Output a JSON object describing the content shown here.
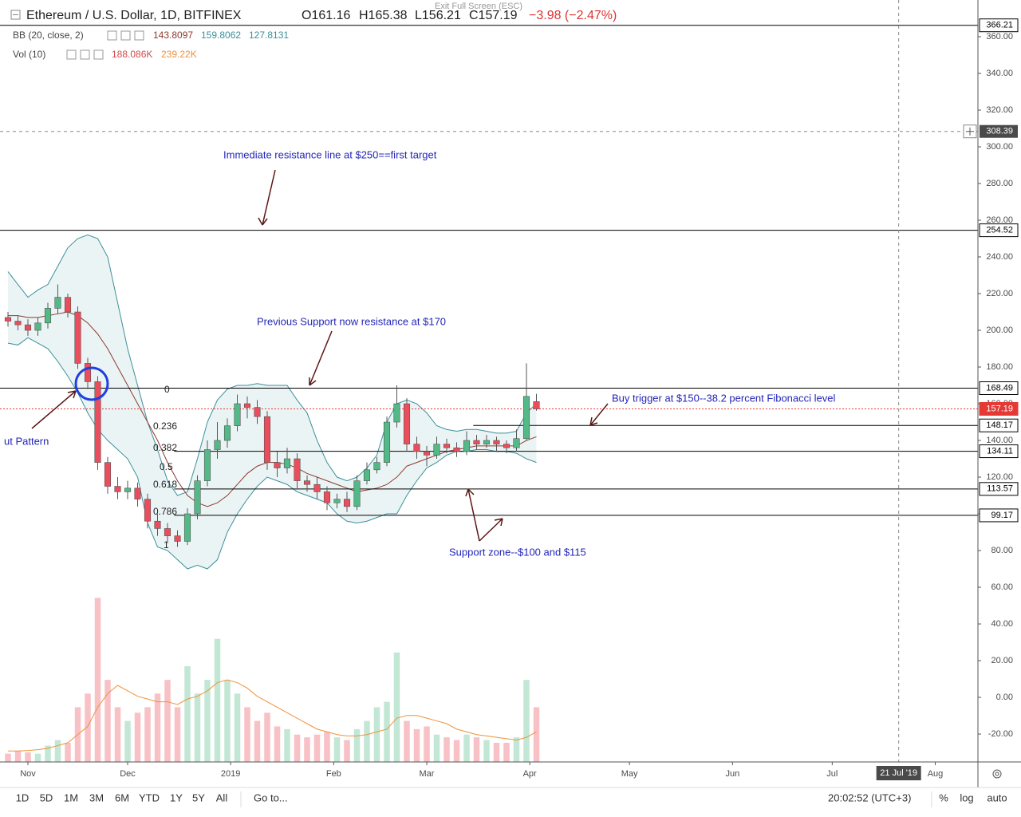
{
  "chart_data": {
    "type": "candlestick",
    "exit_fullscreen": "Exit Full Screen (ESC)",
    "title": "Ethereum / U.S. Dollar, 1D, BITFINEX",
    "ohlc_legend": [
      "O161.16",
      "H165.38",
      "L156.21",
      "C157.19",
      "−3.98 (−2.47%)"
    ],
    "indicators": [
      {
        "name": "BB (20, close, 2)",
        "values": [
          "143.8097",
          "159.8062",
          "127.8131"
        ]
      },
      {
        "name": "Vol (10)",
        "values": [
          "188.086K",
          "239.22K"
        ]
      }
    ],
    "x": [
      -6,
      -3,
      0,
      3,
      6,
      9,
      12,
      15,
      18,
      21,
      24,
      27,
      30,
      33,
      36,
      39,
      42,
      45,
      48,
      51,
      54,
      57,
      60,
      63,
      66,
      69,
      72,
      75,
      78,
      81,
      84,
      87,
      90,
      93,
      96,
      99,
      102,
      105,
      108,
      111,
      114,
      117,
      120,
      123,
      126,
      129,
      132,
      135,
      138,
      141,
      144,
      147,
      150,
      153
    ],
    "open": [
      207,
      205,
      203,
      200,
      204,
      212,
      218,
      210,
      182,
      172,
      128,
      115,
      112,
      114,
      108,
      96,
      92,
      88,
      85,
      100,
      118,
      135,
      140,
      148,
      160,
      158,
      153,
      128,
      125,
      130,
      118,
      116,
      112,
      106,
      108,
      104,
      118,
      124,
      128,
      150,
      160,
      138,
      134,
      132,
      138,
      136,
      134,
      140,
      138,
      140,
      138,
      136,
      141,
      161.16
    ],
    "high": [
      210,
      208,
      206,
      207,
      215,
      225,
      220,
      213,
      185,
      175,
      131,
      120,
      118,
      117,
      111,
      100,
      95,
      91,
      103,
      121,
      140,
      150,
      152,
      165,
      164,
      162,
      156,
      134,
      136,
      133,
      121,
      120,
      115,
      111,
      112,
      121,
      128,
      131,
      153,
      170,
      163,
      142,
      137,
      142,
      141,
      139,
      145,
      143,
      143,
      142,
      140,
      146,
      182,
      165.38
    ],
    "low": [
      202,
      200,
      197,
      197,
      201,
      209,
      207,
      179,
      168,
      124,
      111,
      108,
      108,
      104,
      92,
      88,
      84,
      82,
      83,
      97,
      115,
      130,
      136,
      145,
      152,
      149,
      124,
      120,
      122,
      114,
      112,
      108,
      102,
      103,
      101,
      102,
      116,
      122,
      126,
      147,
      134,
      130,
      126,
      130,
      133,
      131,
      132,
      135,
      136,
      134,
      133,
      134,
      140,
      156.21
    ],
    "close": [
      205,
      203,
      200,
      204,
      212,
      218,
      210,
      182,
      172,
      128,
      115,
      112,
      114,
      108,
      96,
      92,
      88,
      85,
      100,
      118,
      135,
      140,
      148,
      160,
      158,
      153,
      128,
      125,
      130,
      118,
      116,
      112,
      106,
      108,
      104,
      118,
      124,
      128,
      150,
      160,
      138,
      134,
      132,
      138,
      136,
      134,
      140,
      138,
      140,
      138,
      136,
      141,
      164,
      157.19
    ],
    "up_color": "#53b987",
    "down_color": "#eb4d5c",
    "bb": {
      "color": "#3c8f9a",
      "mid_color": "#8d3a2e",
      "upper": [
        232,
        225,
        218,
        222,
        225,
        235,
        245,
        250,
        252,
        250,
        240,
        215,
        190,
        170,
        150,
        135,
        118,
        110,
        112,
        130,
        150,
        162,
        168,
        170,
        170,
        171,
        170,
        170,
        170,
        162,
        155,
        140,
        128,
        120,
        118,
        120,
        125,
        132,
        150,
        160,
        162,
        160,
        155,
        148,
        146,
        145,
        146,
        146,
        145,
        144,
        144,
        145,
        155,
        160
      ],
      "middle": [
        208,
        208,
        207,
        207,
        208,
        209,
        210,
        208,
        204,
        198,
        190,
        180,
        170,
        160,
        150,
        140,
        128,
        118,
        110,
        106,
        104,
        106,
        110,
        116,
        122,
        126,
        128,
        128,
        127,
        125,
        122,
        120,
        118,
        116,
        114,
        112,
        113,
        114,
        116,
        120,
        126,
        128,
        130,
        132,
        134,
        135,
        136,
        137,
        137,
        137,
        137,
        137,
        140,
        142
      ],
      "lower": [
        193,
        192,
        196,
        193,
        190,
        183,
        175,
        166,
        155,
        146,
        140,
        135,
        130,
        120,
        95,
        82,
        80,
        75,
        70,
        72,
        70,
        75,
        90,
        100,
        108,
        115,
        120,
        118,
        116,
        112,
        110,
        108,
        106,
        100,
        96,
        95,
        96,
        98,
        100,
        100,
        110,
        118,
        125,
        128,
        132,
        134,
        134,
        135,
        135,
        134,
        134,
        133,
        130,
        128
      ]
    },
    "volume": {
      "ylim": [
        0,
        700
      ],
      "ma_color": "#f0913a",
      "values": [
        30,
        40,
        35,
        30,
        60,
        80,
        70,
        200,
        250,
        600,
        300,
        200,
        150,
        180,
        200,
        250,
        300,
        200,
        350,
        250,
        300,
        450,
        300,
        250,
        200,
        150,
        180,
        130,
        120,
        100,
        90,
        100,
        110,
        90,
        80,
        120,
        150,
        200,
        220,
        400,
        150,
        120,
        130,
        100,
        90,
        80,
        100,
        90,
        80,
        70,
        70,
        90,
        300,
        200
      ],
      "ma": [
        40,
        40,
        42,
        45,
        50,
        60,
        70,
        100,
        130,
        200,
        250,
        280,
        260,
        240,
        230,
        220,
        220,
        210,
        230,
        240,
        260,
        290,
        300,
        290,
        270,
        240,
        220,
        200,
        180,
        160,
        140,
        120,
        110,
        100,
        95,
        95,
        100,
        110,
        120,
        160,
        170,
        170,
        160,
        150,
        140,
        120,
        110,
        100,
        95,
        90,
        85,
        80,
        90,
        110
      ]
    },
    "xlim": [
      -7.2,
      285.6
    ],
    "xticks": [
      {
        "value": 0,
        "label": "Nov"
      },
      {
        "value": 30,
        "label": "Dec"
      },
      {
        "value": 61,
        "label": "2019"
      },
      {
        "value": 92,
        "label": "Feb"
      },
      {
        "value": 120,
        "label": "Mar"
      },
      {
        "value": 151,
        "label": "Apr"
      },
      {
        "value": 181,
        "label": "May"
      },
      {
        "value": 212,
        "label": "Jun"
      },
      {
        "value": 242,
        "label": "Jul"
      },
      {
        "value": 273,
        "label": "Aug"
      }
    ],
    "ylim": [
      -35.2,
      380
    ],
    "yticks": [
      {
        "value": -20,
        "label": "-20.00"
      },
      {
        "value": 0,
        "label": "0.00"
      },
      {
        "value": 20,
        "label": "20.00"
      },
      {
        "value": 40,
        "label": "40.00"
      },
      {
        "value": 60,
        "label": "60.00"
      },
      {
        "value": 80,
        "label": "80.00"
      },
      {
        "value": 100,
        "label": "100.00"
      },
      {
        "value": 120,
        "label": "120.00"
      },
      {
        "value": 140,
        "label": "140.00"
      },
      {
        "value": 160,
        "label": "160.00"
      },
      {
        "value": 180,
        "label": "180.00"
      },
      {
        "value": 200,
        "label": "200.00"
      },
      {
        "value": 220,
        "label": "220.00"
      },
      {
        "value": 240,
        "label": "240.00"
      },
      {
        "value": 260,
        "label": "260.00"
      },
      {
        "value": 280,
        "label": "280.00"
      },
      {
        "value": 300,
        "label": "300.00"
      },
      {
        "value": 320,
        "label": "320.00"
      },
      {
        "value": 340,
        "label": "340.00"
      },
      {
        "value": 360,
        "label": "360.00"
      }
    ],
    "grid": true,
    "levels": [
      {
        "value": 366.21,
        "color": "#000000"
      },
      {
        "value": 254.52,
        "color": "#000000"
      },
      {
        "value": 168.49,
        "color": "#000000"
      },
      {
        "value": 157.19,
        "color": "#e53935",
        "dotted": true
      },
      {
        "value": 148.17,
        "color": "#000000",
        "from": 134
      },
      {
        "value": 134.11,
        "color": "#000000",
        "from": 44
      },
      {
        "value": 113.57,
        "color": "#000000",
        "from": 44
      },
      {
        "value": 99.17,
        "color": "#000000",
        "from": 44
      }
    ],
    "crosshair": {
      "x": {
        "value": 262,
        "label": "21 Jul '19"
      },
      "y": 308.39
    },
    "fibonacci": [
      0,
      0.236,
      0.382,
      0.5,
      0.618,
      0.786,
      1
    ],
    "annotations": [
      "Immediate resistance line at $250==first target",
      "Previous Support now resistance at $170",
      "Buy trigger at $150--38.2 percent Fibonacci level",
      "Support zone--$100 and $115",
      "ut Pattern"
    ],
    "toolbar": {
      "ranges": [
        "1D",
        "5D",
        "1M",
        "3M",
        "6M",
        "YTD",
        "1Y",
        "5Y",
        "All"
      ],
      "goto": "Go to...",
      "time": "20:02:52 (UTC+3)",
      "options": [
        "%",
        "log",
        "auto"
      ]
    }
  }
}
